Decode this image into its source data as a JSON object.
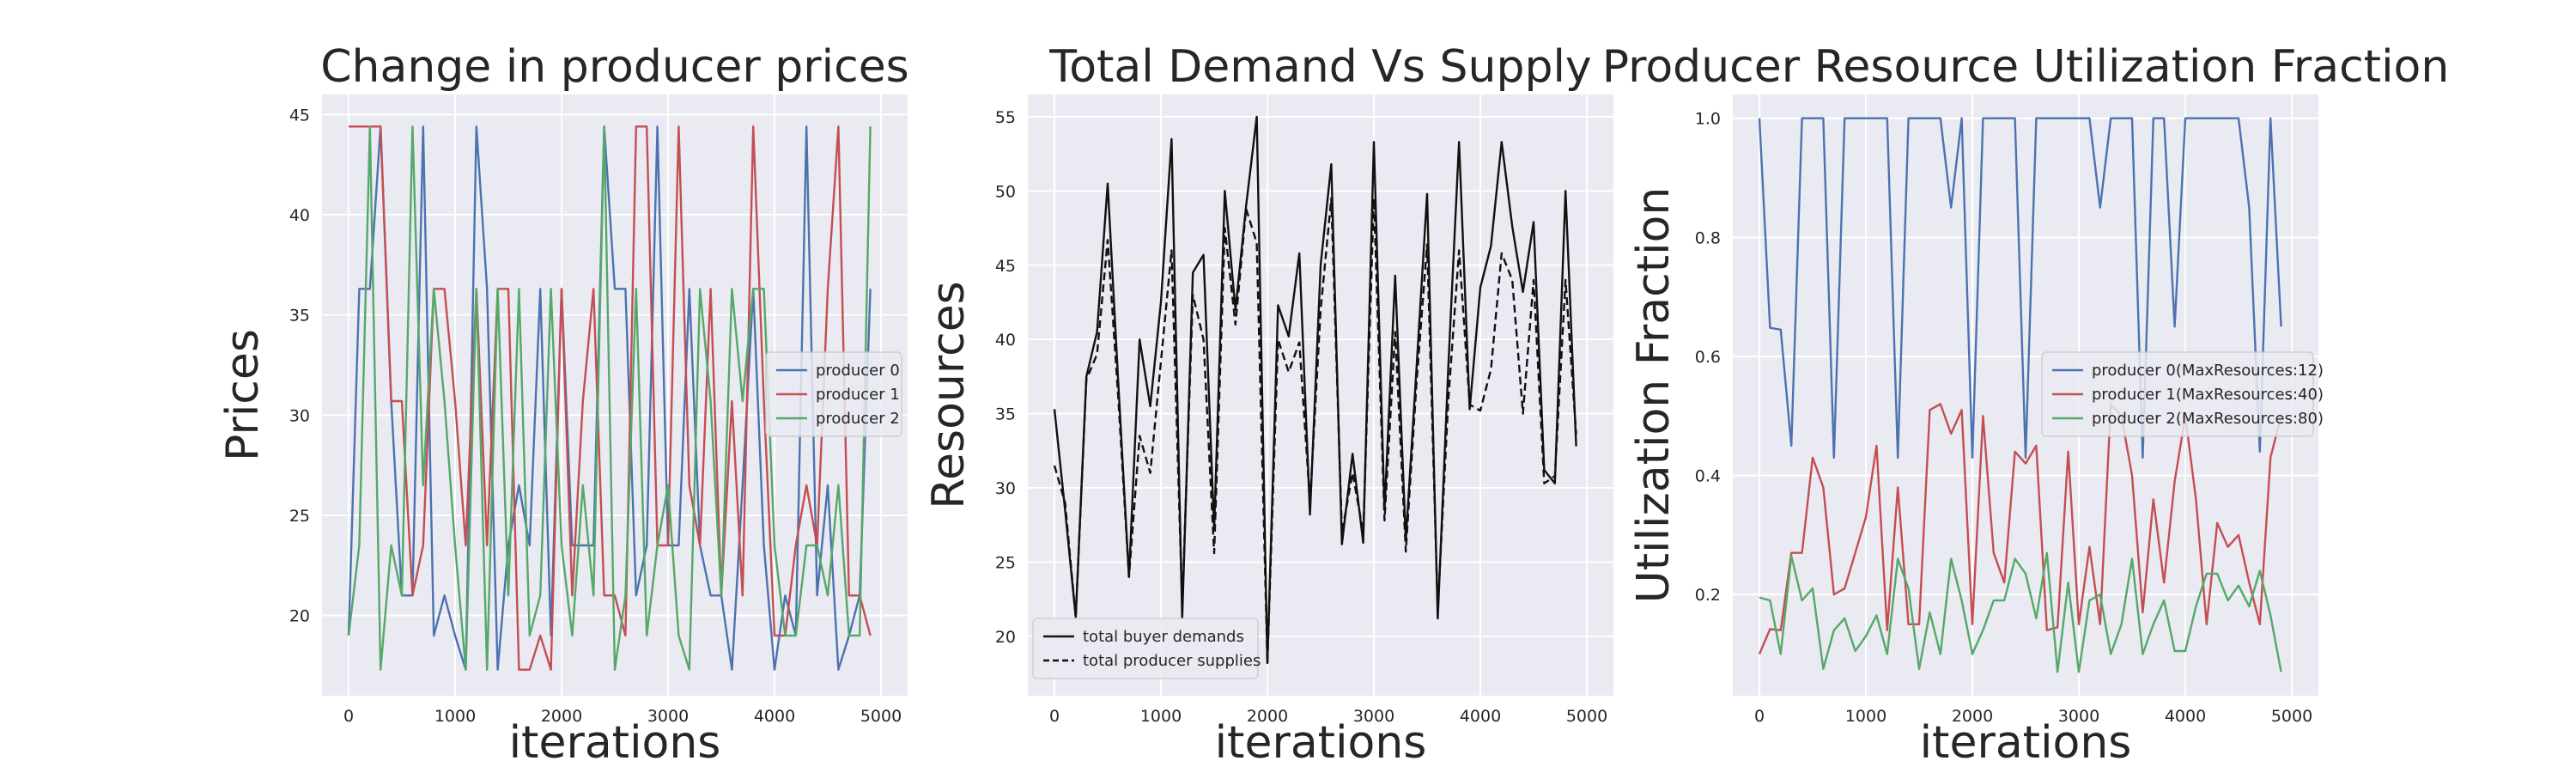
{
  "chart_data": [
    {
      "type": "line",
      "title": "Change in producer prices",
      "xlabel": "iterations",
      "ylabel": "Prices",
      "xlim": [
        -250,
        5250
      ],
      "ylim": [
        16,
        46
      ],
      "xticks": [
        0,
        1000,
        2000,
        3000,
        4000,
        5000
      ],
      "yticks": [
        20,
        25,
        30,
        35,
        40,
        45
      ],
      "grid": true,
      "legend_position": "center-right",
      "x": [
        0,
        100,
        200,
        300,
        400,
        500,
        600,
        700,
        800,
        900,
        1000,
        1100,
        1200,
        1300,
        1400,
        1500,
        1600,
        1700,
        1800,
        1900,
        2000,
        2100,
        2200,
        2300,
        2400,
        2500,
        2600,
        2700,
        2800,
        2900,
        3000,
        3100,
        3200,
        3300,
        3400,
        3500,
        3600,
        3700,
        3800,
        3900,
        4000,
        4100,
        4200,
        4300,
        4400,
        4500,
        4600,
        4700,
        4800,
        4900
      ],
      "series": [
        {
          "name": "producer 0",
          "color": "#4c72b0",
          "values": [
            19,
            36.3,
            36.3,
            44.4,
            30.7,
            21,
            21,
            44.4,
            19,
            21,
            19,
            17.3,
            44.4,
            36.3,
            17.3,
            23.5,
            26.5,
            23.5,
            36.3,
            19,
            36.3,
            23.5,
            23.5,
            23.5,
            44.4,
            36.3,
            36.3,
            21,
            23.5,
            44.4,
            23.5,
            23.5,
            36.3,
            23.5,
            21,
            21,
            17.3,
            26.5,
            36.3,
            23.5,
            17.3,
            21,
            19,
            44.4,
            21,
            26.5,
            17.3,
            19,
            21,
            36.3
          ]
        },
        {
          "name": "producer 1",
          "color": "#c44e52",
          "values": [
            44.4,
            44.4,
            44.4,
            44.4,
            30.7,
            30.7,
            21,
            23.5,
            36.3,
            36.3,
            30.7,
            23.5,
            36.3,
            23.5,
            36.3,
            36.3,
            17.3,
            17.3,
            19,
            17.3,
            36.3,
            21,
            30.7,
            36.3,
            21,
            21,
            19,
            44.4,
            44.4,
            23.5,
            23.5,
            44.4,
            26.5,
            23.5,
            36.3,
            21,
            30.7,
            21,
            44.4,
            30.7,
            19,
            19,
            23.5,
            26.5,
            23.5,
            36.3,
            44.4,
            21,
            21,
            19
          ]
        },
        {
          "name": "producer 2",
          "color": "#55a868",
          "values": [
            19,
            23.5,
            44.4,
            17.3,
            23.5,
            21,
            44.4,
            26.5,
            36.3,
            30.7,
            23.5,
            17.3,
            36.3,
            17.3,
            36.3,
            21,
            36.3,
            19,
            21,
            36.3,
            23.5,
            19,
            26.5,
            21,
            44.4,
            17.3,
            21,
            36.3,
            19,
            23.5,
            26.5,
            19,
            17.3,
            36.3,
            30.7,
            21,
            36.3,
            30.7,
            36.3,
            36.3,
            23.5,
            19,
            19,
            23.5,
            23.5,
            21,
            26.5,
            19,
            19,
            44.4
          ]
        }
      ]
    },
    {
      "type": "line",
      "title": "Total Demand Vs Supply",
      "xlabel": "iterations",
      "ylabel": "Resources",
      "xlim": [
        -250,
        5250
      ],
      "ylim": [
        16,
        56.5
      ],
      "xticks": [
        0,
        1000,
        2000,
        3000,
        4000,
        5000
      ],
      "yticks": [
        20,
        25,
        30,
        35,
        40,
        45,
        50,
        55
      ],
      "grid": true,
      "legend_position": "lower-left",
      "x": [
        0,
        100,
        200,
        300,
        400,
        500,
        600,
        700,
        800,
        900,
        1000,
        1100,
        1200,
        1300,
        1400,
        1500,
        1600,
        1700,
        1800,
        1900,
        2000,
        2100,
        2200,
        2300,
        2400,
        2500,
        2600,
        2700,
        2800,
        2900,
        3000,
        3100,
        3200,
        3300,
        3400,
        3500,
        3600,
        3700,
        3800,
        3900,
        4000,
        4100,
        4200,
        4300,
        4400,
        4500,
        4600,
        4700,
        4800,
        4900
      ],
      "series": [
        {
          "name": "total buyer demands",
          "color": "#111111",
          "dash": "solid",
          "values": [
            35.3,
            28.5,
            21.3,
            37.5,
            40.5,
            50.5,
            37,
            24,
            40,
            35.5,
            42.5,
            53.5,
            21.2,
            44.5,
            45.7,
            27.2,
            50,
            42,
            49,
            55,
            18.2,
            42.3,
            40.2,
            45.8,
            28.2,
            45,
            51.8,
            26.2,
            32.3,
            26.3,
            53.3,
            28.5,
            44.3,
            26.5,
            38,
            49.8,
            21.2,
            38.3,
            53.3,
            35.3,
            43.5,
            46.3,
            53.3,
            47.6,
            43.2,
            47.9,
            31.2,
            30.3,
            50,
            32.8
          ]
        },
        {
          "name": "total producer supplies",
          "color": "#111111",
          "dash": "dashed",
          "values": [
            31.5,
            29,
            21.3,
            37.3,
            39,
            46.7,
            36,
            24,
            33.5,
            31,
            38.5,
            46,
            22,
            43,
            40,
            25.6,
            47.5,
            41,
            48.8,
            46.5,
            18.2,
            40,
            37.8,
            39.8,
            29,
            42,
            49.5,
            27,
            31,
            27,
            49.5,
            27.8,
            40.5,
            25.7,
            37,
            46.4,
            21.8,
            36,
            46,
            35.6,
            35.2,
            38,
            45.8,
            44,
            35,
            44,
            30.3,
            30.8,
            44,
            33.6
          ]
        }
      ]
    },
    {
      "type": "line",
      "title": "Producer Resource Utilization Fraction",
      "xlabel": "iterations",
      "ylabel": "Utilization Fraction",
      "xlim": [
        -250,
        5250
      ],
      "ylim": [
        0.03,
        1.04
      ],
      "xticks": [
        0,
        1000,
        2000,
        3000,
        4000,
        5000
      ],
      "yticks": [
        0.2,
        0.4,
        0.6,
        0.8,
        1.0
      ],
      "ytick_labels": [
        "0.2",
        "0.4",
        "0.6",
        "0.8",
        "1.0"
      ],
      "grid": true,
      "legend_position": "center-right",
      "x": [
        0,
        100,
        200,
        300,
        400,
        500,
        600,
        700,
        800,
        900,
        1000,
        1100,
        1200,
        1300,
        1400,
        1500,
        1600,
        1700,
        1800,
        1900,
        2000,
        2100,
        2200,
        2300,
        2400,
        2500,
        2600,
        2700,
        2800,
        2900,
        3000,
        3100,
        3200,
        3300,
        3400,
        3500,
        3600,
        3700,
        3800,
        3900,
        4000,
        4100,
        4200,
        4300,
        4400,
        4500,
        4600,
        4700,
        4800,
        4900
      ],
      "series": [
        {
          "name": "producer 0(MaxResources:12)",
          "color": "#4c72b0",
          "values": [
            1.0,
            0.648,
            0.645,
            0.45,
            1.0,
            1.0,
            1.0,
            0.43,
            1.0,
            1.0,
            1.0,
            1.0,
            1.0,
            0.43,
            1.0,
            1.0,
            1.0,
            1.0,
            0.85,
            1.0,
            0.43,
            1.0,
            1.0,
            1.0,
            1.0,
            0.43,
            1.0,
            1.0,
            1.0,
            1.0,
            1.0,
            1.0,
            0.85,
            1.0,
            1.0,
            1.0,
            0.43,
            1.0,
            1.0,
            0.65,
            1.0,
            1.0,
            1.0,
            1.0,
            1.0,
            1.0,
            0.85,
            0.44,
            1.0,
            0.65
          ]
        },
        {
          "name": "producer 1(MaxResources:40)",
          "color": "#c44e52",
          "values": [
            0.1,
            0.142,
            0.14,
            0.27,
            0.27,
            0.43,
            0.38,
            0.2,
            0.21,
            0.27,
            0.33,
            0.45,
            0.14,
            0.38,
            0.15,
            0.15,
            0.51,
            0.52,
            0.47,
            0.51,
            0.15,
            0.5,
            0.27,
            0.22,
            0.44,
            0.42,
            0.45,
            0.14,
            0.145,
            0.44,
            0.15,
            0.28,
            0.15,
            0.52,
            0.5,
            0.4,
            0.17,
            0.36,
            0.22,
            0.39,
            0.5,
            0.36,
            0.15,
            0.32,
            0.28,
            0.3,
            0.22,
            0.15,
            0.43,
            0.5
          ]
        },
        {
          "name": "producer 2(MaxResources:80)",
          "color": "#55a868",
          "values": [
            0.195,
            0.19,
            0.1,
            0.265,
            0.19,
            0.21,
            0.075,
            0.14,
            0.16,
            0.105,
            0.13,
            0.165,
            0.1,
            0.26,
            0.21,
            0.075,
            0.17,
            0.1,
            0.26,
            0.19,
            0.1,
            0.14,
            0.19,
            0.19,
            0.26,
            0.235,
            0.16,
            0.27,
            0.07,
            0.22,
            0.07,
            0.19,
            0.2,
            0.1,
            0.15,
            0.26,
            0.1,
            0.15,
            0.19,
            0.105,
            0.105,
            0.18,
            0.235,
            0.235,
            0.19,
            0.215,
            0.18,
            0.24,
            0.165,
            0.07
          ]
        }
      ]
    }
  ]
}
